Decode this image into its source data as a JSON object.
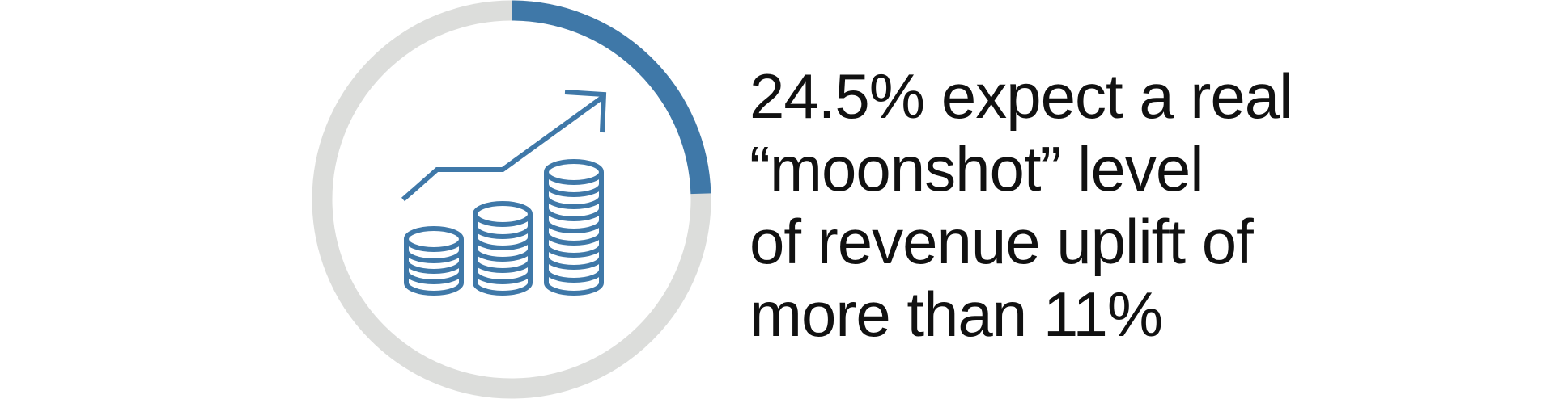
{
  "stat": {
    "percent": 24.5,
    "ring": {
      "track_color": "#dcdddb",
      "progress_color": "#3f78a8"
    },
    "icon": "rising-coins-stack-icon",
    "text_lines": [
      "24.5% expect a real",
      "“moonshot” level",
      "of revenue uplift of",
      "more than 11%"
    ]
  }
}
